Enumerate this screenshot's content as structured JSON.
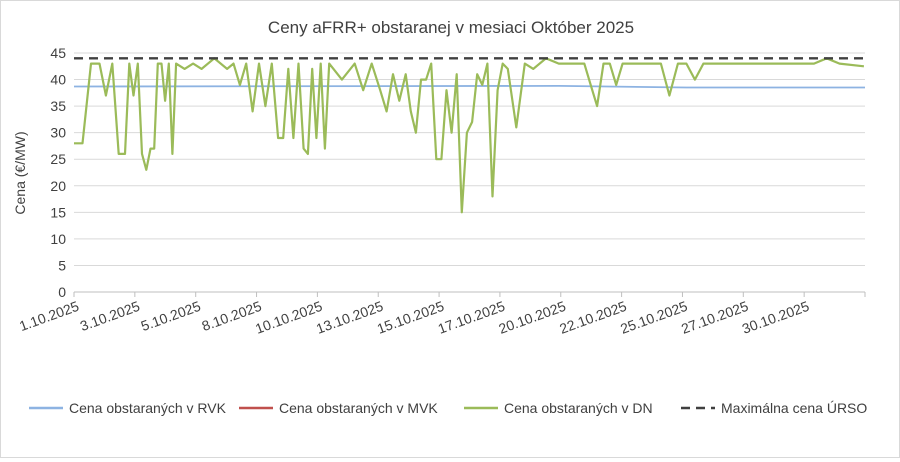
{
  "chart_data": {
    "type": "line",
    "title": "Ceny aFRR+ obstaranej v mesiaci Október 2025",
    "ylabel": "Cena (€/MW)",
    "xlabel": "",
    "ylim": [
      0,
      45
    ],
    "y_ticks": [
      0,
      5,
      10,
      15,
      20,
      25,
      30,
      35,
      40,
      45
    ],
    "x_range": [
      "1.10.2025",
      "31.10.2025"
    ],
    "x_tick_labels": [
      "1.10.2025",
      "3.10.2025",
      "5.10.2025",
      "8.10.2025",
      "10.10.2025",
      "13.10.2025",
      "15.10.2025",
      "17.10.2025",
      "20.10.2025",
      "22.10.2025",
      "25.10.2025",
      "27.10.2025",
      "30.10.2025"
    ],
    "grid": "horizontal",
    "legend": "bottom",
    "series": [
      {
        "name": "Cena obstaraných v RVK",
        "color": "#8db3e2",
        "points": [
          [
            "1.10.2025",
            38.7
          ],
          [
            "20.10.2025",
            38.8
          ],
          [
            "25.10.2025",
            38.5
          ],
          [
            "31.10.2025",
            38.5
          ]
        ]
      },
      {
        "name": "Cena obstaraných v MVK",
        "color": "#c0504d",
        "points": []
      },
      {
        "name": "Cena obstaraných v DN",
        "color": "#9bbb59",
        "points": [
          [
            "1.10.2025",
            28
          ],
          [
            "1.10.2025",
            28
          ],
          [
            "1.10.2025",
            43
          ],
          [
            "2.10.2025",
            43
          ],
          [
            "2.10.2025",
            37
          ],
          [
            "2.10.2025",
            43
          ],
          [
            "2.10.2025",
            26
          ],
          [
            "3.10.2025",
            26
          ],
          [
            "3.10.2025",
            43
          ],
          [
            "3.10.2025",
            37
          ],
          [
            "3.10.2025",
            43
          ],
          [
            "3.10.2025",
            26
          ],
          [
            "3.10.2025",
            23
          ],
          [
            "4.10.2025",
            27
          ],
          [
            "4.10.2025",
            27
          ],
          [
            "4.10.2025",
            43
          ],
          [
            "4.10.2025",
            43
          ],
          [
            "4.10.2025",
            36
          ],
          [
            "4.10.2025",
            43
          ],
          [
            "4.10.2025",
            26
          ],
          [
            "5.10.2025",
            43
          ],
          [
            "5.10.2025",
            42
          ],
          [
            "5.10.2025",
            43
          ],
          [
            "6.10.2025",
            42
          ],
          [
            "6.10.2025",
            44
          ],
          [
            "7.10.2025",
            42
          ],
          [
            "7.10.2025",
            43
          ],
          [
            "7.10.2025",
            39
          ],
          [
            "7.10.2025",
            43
          ],
          [
            "8.10.2025",
            34
          ],
          [
            "8.10.2025",
            43
          ],
          [
            "8.10.2025",
            35
          ],
          [
            "8.10.2025",
            43
          ],
          [
            "9.10.2025",
            29
          ],
          [
            "9.10.2025",
            29
          ],
          [
            "9.10.2025",
            42
          ],
          [
            "9.10.2025",
            29
          ],
          [
            "9.10.2025",
            43
          ],
          [
            "10.10.2025",
            27
          ],
          [
            "10.10.2025",
            26
          ],
          [
            "10.10.2025",
            42
          ],
          [
            "10.10.2025",
            29
          ],
          [
            "10.10.2025",
            43
          ],
          [
            "10.10.2025",
            27
          ],
          [
            "11.10.2025",
            43
          ],
          [
            "11.10.2025",
            40
          ],
          [
            "12.10.2025",
            43
          ],
          [
            "12.10.2025",
            38
          ],
          [
            "12.10.2025",
            43
          ],
          [
            "13.10.2025",
            38
          ],
          [
            "13.10.2025",
            34
          ],
          [
            "13.10.2025",
            41
          ],
          [
            "13.10.2025",
            36
          ],
          [
            "14.10.2025",
            41
          ],
          [
            "14.10.2025",
            34
          ],
          [
            "14.10.2025",
            30
          ],
          [
            "14.10.2025",
            40
          ],
          [
            "14.10.2025",
            40
          ],
          [
            "15.10.2025",
            43
          ],
          [
            "15.10.2025",
            25
          ],
          [
            "15.10.2025",
            25
          ],
          [
            "15.10.2025",
            38
          ],
          [
            "15.10.2025",
            30
          ],
          [
            "16.10.2025",
            41
          ],
          [
            "16.10.2025",
            15
          ],
          [
            "16.10.2025",
            30
          ],
          [
            "16.10.2025",
            32
          ],
          [
            "16.10.2025",
            41
          ],
          [
            "17.10.2025",
            39
          ],
          [
            "17.10.2025",
            43
          ],
          [
            "17.10.2025",
            18
          ],
          [
            "17.10.2025",
            38
          ],
          [
            "17.10.2025",
            43
          ],
          [
            "18.10.2025",
            42
          ],
          [
            "18.10.2025",
            31
          ],
          [
            "18.10.2025",
            43
          ],
          [
            "19.10.2025",
            42
          ],
          [
            "19.10.2025",
            44
          ],
          [
            "20.10.2025",
            43
          ],
          [
            "20.10.2025",
            43
          ],
          [
            "21.10.2025",
            43
          ],
          [
            "21.10.2025",
            39
          ],
          [
            "21.10.2025",
            35
          ],
          [
            "21.10.2025",
            43
          ],
          [
            "22.10.2025",
            43
          ],
          [
            "22.10.2025",
            39
          ],
          [
            "22.10.2025",
            43
          ],
          [
            "22.10.2025",
            43
          ],
          [
            "23.10.2025",
            43
          ],
          [
            "24.10.2025",
            43
          ],
          [
            "24.10.2025",
            37
          ],
          [
            "24.10.2025",
            43
          ],
          [
            "25.10.2025",
            43
          ],
          [
            "25.10.2025",
            40
          ],
          [
            "25.10.2025",
            43
          ],
          [
            "26.10.2025",
            43
          ],
          [
            "27.10.2025",
            43
          ],
          [
            "27.10.2025",
            43
          ],
          [
            "28.10.2025",
            43
          ],
          [
            "29.10.2025",
            43
          ],
          [
            "30.10.2025",
            43
          ],
          [
            "30.10.2025",
            44
          ],
          [
            "31.10.2025",
            43
          ],
          [
            "31.10.2025",
            42.5
          ]
        ]
      },
      {
        "name": "Maximálna cena ÚRSO",
        "color": "#404040",
        "style": "dashed",
        "points": [
          [
            "1.10.2025",
            44
          ],
          [
            "31.10.2025",
            44
          ]
        ]
      }
    ]
  }
}
